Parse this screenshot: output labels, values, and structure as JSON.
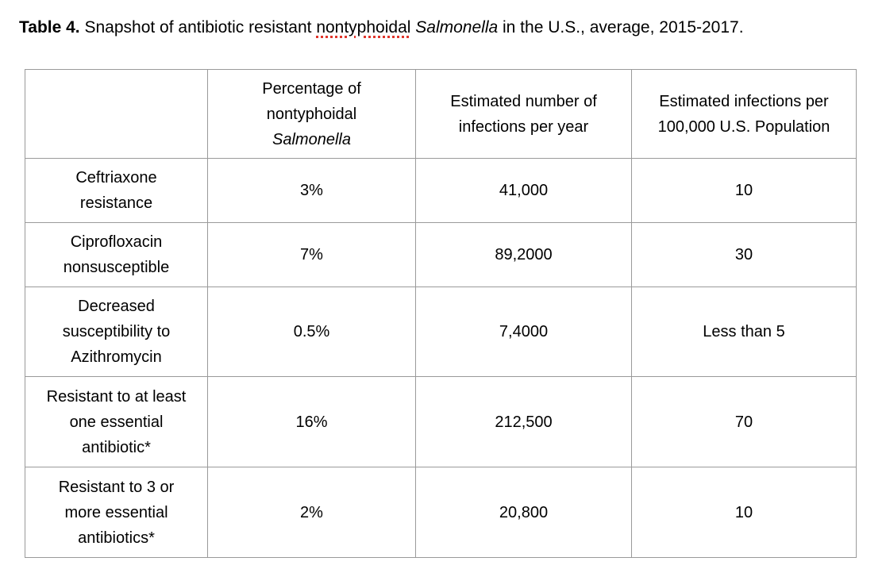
{
  "caption": {
    "label": "Table 4.",
    "text_before": " Snapshot of antibiotic resistant ",
    "misspelled_word": "nontyphoidal",
    "text_space": " ",
    "italic_word": "Salmonella",
    "text_after": " in the U.S., average, 2015-2017."
  },
  "table": {
    "header": {
      "col1": "",
      "col2_line1": "Percentage of",
      "col2_line2": "nontyphoidal",
      "col2_italic": "Salmonella",
      "col3_line1": "Estimated number of",
      "col3_line2": "infections per year",
      "col4_line1": "Estimated infections per",
      "col4_line2": "100,000 U.S. Population"
    },
    "rows": [
      {
        "label_lines": [
          "Ceftriaxone",
          "resistance"
        ],
        "percentage": "3%",
        "infections_per_year": "41,000",
        "per_100k": "10"
      },
      {
        "label_lines": [
          "Ciprofloxacin",
          "nonsusceptible"
        ],
        "percentage": "7%",
        "infections_per_year": "89,2000",
        "per_100k": "30"
      },
      {
        "label_lines": [
          "Decreased",
          "susceptibility to",
          "Azithromycin"
        ],
        "percentage": "0.5%",
        "infections_per_year": "7,4000",
        "per_100k": "Less than 5"
      },
      {
        "label_lines": [
          "Resistant to at least",
          "one essential",
          "antibiotic*"
        ],
        "percentage": "16%",
        "infections_per_year": "212,500",
        "per_100k": "70"
      },
      {
        "label_lines": [
          "Resistant to 3 or",
          "more essential",
          "antibiotics*"
        ],
        "percentage": "2%",
        "infections_per_year": "20,800",
        "per_100k": "10"
      }
    ]
  }
}
